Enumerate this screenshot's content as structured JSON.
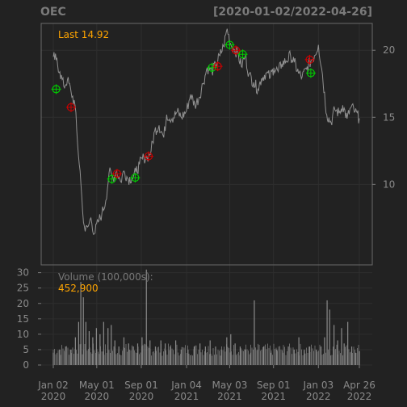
{
  "chart_data": [
    {
      "type": "line",
      "ticker": "OEC",
      "date_range": "[2020-01-02/2022-04-26]",
      "last_label": "Last 14.92",
      "last_value": 14.92,
      "ylim": [
        4,
        22
      ],
      "y_ticks": [
        10,
        15,
        20
      ],
      "y_axis_side": "right",
      "grid": true,
      "colors": {
        "background": "#222222",
        "price_line": "#909090",
        "text": "#7a7a7a",
        "accent": "#FFA500",
        "buy_marker": "#00CC00",
        "sell_marker": "#CC0000"
      },
      "x_ticks": [
        {
          "date": "2020-01-02",
          "label": "Jan 02\n2020"
        },
        {
          "date": "2020-05-01",
          "label": "May 01\n2020"
        },
        {
          "date": "2020-09-01",
          "label": "Sep 01\n2020"
        },
        {
          "date": "2021-01-04",
          "label": "Jan 04\n2021"
        },
        {
          "date": "2021-05-03",
          "label": "May 03\n2021"
        },
        {
          "date": "2021-09-01",
          "label": "Sep 01\n2021"
        },
        {
          "date": "2022-01-03",
          "label": "Jan 03\n2022"
        },
        {
          "date": "2022-04-26",
          "label": "Apr 26\n2022"
        }
      ],
      "series": [
        {
          "values": [
            [
              "2020-01-02",
              19.5
            ],
            [
              "2020-01-10",
              19.3
            ],
            [
              "2020-01-20",
              18.4
            ],
            [
              "2020-01-31",
              17.3
            ],
            [
              "2020-02-10",
              17.8
            ],
            [
              "2020-02-20",
              16.9
            ],
            [
              "2020-03-02",
              15.9
            ],
            [
              "2020-03-09",
              13.0
            ],
            [
              "2020-03-16",
              11.0
            ],
            [
              "2020-03-23",
              8.0
            ],
            [
              "2020-03-30",
              6.5
            ],
            [
              "2020-04-08",
              6.9
            ],
            [
              "2020-04-15",
              7.5
            ],
            [
              "2020-04-24",
              6.3
            ],
            [
              "2020-05-05",
              7.2
            ],
            [
              "2020-05-15",
              7.8
            ],
            [
              "2020-05-26",
              8.8
            ],
            [
              "2020-06-04",
              10.9
            ],
            [
              "2020-06-15",
              10.5
            ],
            [
              "2020-06-25",
              11.0
            ],
            [
              "2020-07-06",
              10.2
            ],
            [
              "2020-07-15",
              11.0
            ],
            [
              "2020-07-27",
              10.4
            ],
            [
              "2020-08-06",
              10.5
            ],
            [
              "2020-08-17",
              10.9
            ],
            [
              "2020-08-27",
              11.5
            ],
            [
              "2020-09-08",
              12.0
            ],
            [
              "2020-09-17",
              12.0
            ],
            [
              "2020-09-28",
              12.5
            ],
            [
              "2020-10-08",
              14.0
            ],
            [
              "2020-10-20",
              14.4
            ],
            [
              "2020-11-02",
              13.5
            ],
            [
              "2020-11-10",
              15.2
            ],
            [
              "2020-11-25",
              14.9
            ],
            [
              "2020-12-09",
              15.4
            ],
            [
              "2020-12-21",
              15.0
            ],
            [
              "2021-01-04",
              15.5
            ],
            [
              "2021-01-15",
              16.7
            ],
            [
              "2021-01-27",
              15.9
            ],
            [
              "2021-02-08",
              16.5
            ],
            [
              "2021-02-18",
              17.5
            ],
            [
              "2021-03-02",
              18.7
            ],
            [
              "2021-03-15",
              18.4
            ],
            [
              "2021-03-25",
              18.9
            ],
            [
              "2021-04-06",
              19.6
            ],
            [
              "2021-04-16",
              20.3
            ],
            [
              "2021-04-26",
              21.6
            ],
            [
              "2021-05-05",
              20.5
            ],
            [
              "2021-05-14",
              20.1
            ],
            [
              "2021-05-25",
              19.8
            ],
            [
              "2021-06-04",
              18.8
            ],
            [
              "2021-06-15",
              19.6
            ],
            [
              "2021-06-25",
              18.2
            ],
            [
              "2021-07-08",
              17.6
            ],
            [
              "2021-07-20",
              17.1
            ],
            [
              "2021-07-30",
              17.9
            ],
            [
              "2021-08-11",
              18.3
            ],
            [
              "2021-08-23",
              18.0
            ],
            [
              "2021-09-02",
              18.7
            ],
            [
              "2021-09-14",
              18.4
            ],
            [
              "2021-09-24",
              19.0
            ],
            [
              "2021-10-06",
              19.2
            ],
            [
              "2021-10-18",
              19.6
            ],
            [
              "2021-10-28",
              19.1
            ],
            [
              "2021-11-09",
              18.3
            ],
            [
              "2021-11-19",
              18.0
            ],
            [
              "2021-12-01",
              18.6
            ],
            [
              "2021-12-13",
              19.2
            ],
            [
              "2021-12-23",
              19.6
            ],
            [
              "2022-01-03",
              20.4
            ],
            [
              "2022-01-14",
              18.2
            ],
            [
              "2022-01-26",
              15.2
            ],
            [
              "2022-02-07",
              14.6
            ],
            [
              "2022-02-17",
              15.6
            ],
            [
              "2022-03-01",
              15.3
            ],
            [
              "2022-03-11",
              15.9
            ],
            [
              "2022-03-23",
              14.9
            ],
            [
              "2022-04-04",
              15.8
            ],
            [
              "2022-04-14",
              15.4
            ],
            [
              "2022-04-26",
              14.92
            ]
          ]
        }
      ],
      "signals": [
        {
          "date": "2020-01-10",
          "y": 17.1,
          "type": "buy"
        },
        {
          "date": "2020-02-20",
          "y": 15.75,
          "type": "sell"
        },
        {
          "date": "2020-06-12",
          "y": 10.4,
          "type": "buy"
        },
        {
          "date": "2020-06-26",
          "y": 10.8,
          "type": "sell"
        },
        {
          "date": "2020-08-15",
          "y": 10.5,
          "type": "buy"
        },
        {
          "date": "2020-09-21",
          "y": 12.1,
          "type": "sell"
        },
        {
          "date": "2021-03-15",
          "y": 18.7,
          "type": "buy"
        },
        {
          "date": "2021-03-31",
          "y": 18.8,
          "type": "sell"
        },
        {
          "date": "2021-05-03",
          "y": 20.4,
          "type": "buy"
        },
        {
          "date": "2021-05-20",
          "y": 20.0,
          "type": "sell"
        },
        {
          "date": "2021-06-08",
          "y": 19.7,
          "type": "buy"
        },
        {
          "date": "2021-12-10",
          "y": 19.3,
          "type": "sell"
        },
        {
          "date": "2021-12-13",
          "y": 18.3,
          "type": "buy"
        }
      ]
    },
    {
      "type": "bar",
      "label": "Volume (100,000s):",
      "last_value_label": "452,900",
      "ylim": [
        0,
        32
      ],
      "y_ticks": [
        0,
        5,
        10,
        15,
        20,
        25,
        30
      ],
      "y_axis_side": "left",
      "grid": true,
      "series": [
        {
          "values": [
            [
              "2020-01-02",
              4
            ],
            [
              "2020-01-20",
              5
            ],
            [
              "2020-02-05",
              6
            ],
            [
              "2020-02-20",
              5
            ],
            [
              "2020-03-03",
              9
            ],
            [
              "2020-03-12",
              14
            ],
            [
              "2020-03-18",
              27
            ],
            [
              "2020-03-25",
              22
            ],
            [
              "2020-04-01",
              14
            ],
            [
              "2020-04-10",
              11
            ],
            [
              "2020-04-20",
              9
            ],
            [
              "2020-04-30",
              12
            ],
            [
              "2020-05-10",
              10
            ],
            [
              "2020-05-20",
              14
            ],
            [
              "2020-06-01",
              12
            ],
            [
              "2020-06-10",
              13
            ],
            [
              "2020-06-20",
              8
            ],
            [
              "2020-07-01",
              6
            ],
            [
              "2020-07-15",
              9
            ],
            [
              "2020-07-28",
              7
            ],
            [
              "2020-08-10",
              6
            ],
            [
              "2020-08-22",
              7
            ],
            [
              "2020-09-03",
              9
            ],
            [
              "2020-09-15",
              31
            ],
            [
              "2020-09-25",
              8
            ],
            [
              "2020-10-10",
              6
            ],
            [
              "2020-10-25",
              8
            ],
            [
              "2020-11-06",
              7
            ],
            [
              "2020-11-20",
              6
            ],
            [
              "2020-12-05",
              8
            ],
            [
              "2020-12-20",
              5
            ],
            [
              "2021-01-08",
              5
            ],
            [
              "2021-01-25",
              6
            ],
            [
              "2021-02-10",
              7
            ],
            [
              "2021-02-25",
              6
            ],
            [
              "2021-03-10",
              8
            ],
            [
              "2021-03-25",
              6
            ],
            [
              "2021-04-10",
              5
            ],
            [
              "2021-04-25",
              9
            ],
            [
              "2021-05-06",
              10
            ],
            [
              "2021-05-18",
              7
            ],
            [
              "2021-06-01",
              6
            ],
            [
              "2021-06-15",
              5
            ],
            [
              "2021-06-30",
              4
            ],
            [
              "2021-07-10",
              21
            ],
            [
              "2021-07-20",
              5
            ],
            [
              "2021-08-05",
              6
            ],
            [
              "2021-08-25",
              4
            ],
            [
              "2021-09-10",
              5
            ],
            [
              "2021-09-28",
              4
            ],
            [
              "2021-10-12",
              6
            ],
            [
              "2021-10-28",
              5
            ],
            [
              "2021-11-10",
              9
            ],
            [
              "2021-11-25",
              5
            ],
            [
              "2021-12-10",
              6
            ],
            [
              "2021-12-28",
              5
            ],
            [
              "2022-01-10",
              6
            ],
            [
              "2022-01-20",
              9
            ],
            [
              "2022-01-27",
              21
            ],
            [
              "2022-02-03",
              18
            ],
            [
              "2022-02-15",
              13
            ],
            [
              "2022-02-25",
              8
            ],
            [
              "2022-03-08",
              12
            ],
            [
              "2022-03-15",
              7
            ],
            [
              "2022-03-25",
              14
            ],
            [
              "2022-04-05",
              6
            ],
            [
              "2022-04-15",
              4
            ],
            [
              "2022-04-26",
              4.5
            ]
          ]
        }
      ]
    }
  ]
}
